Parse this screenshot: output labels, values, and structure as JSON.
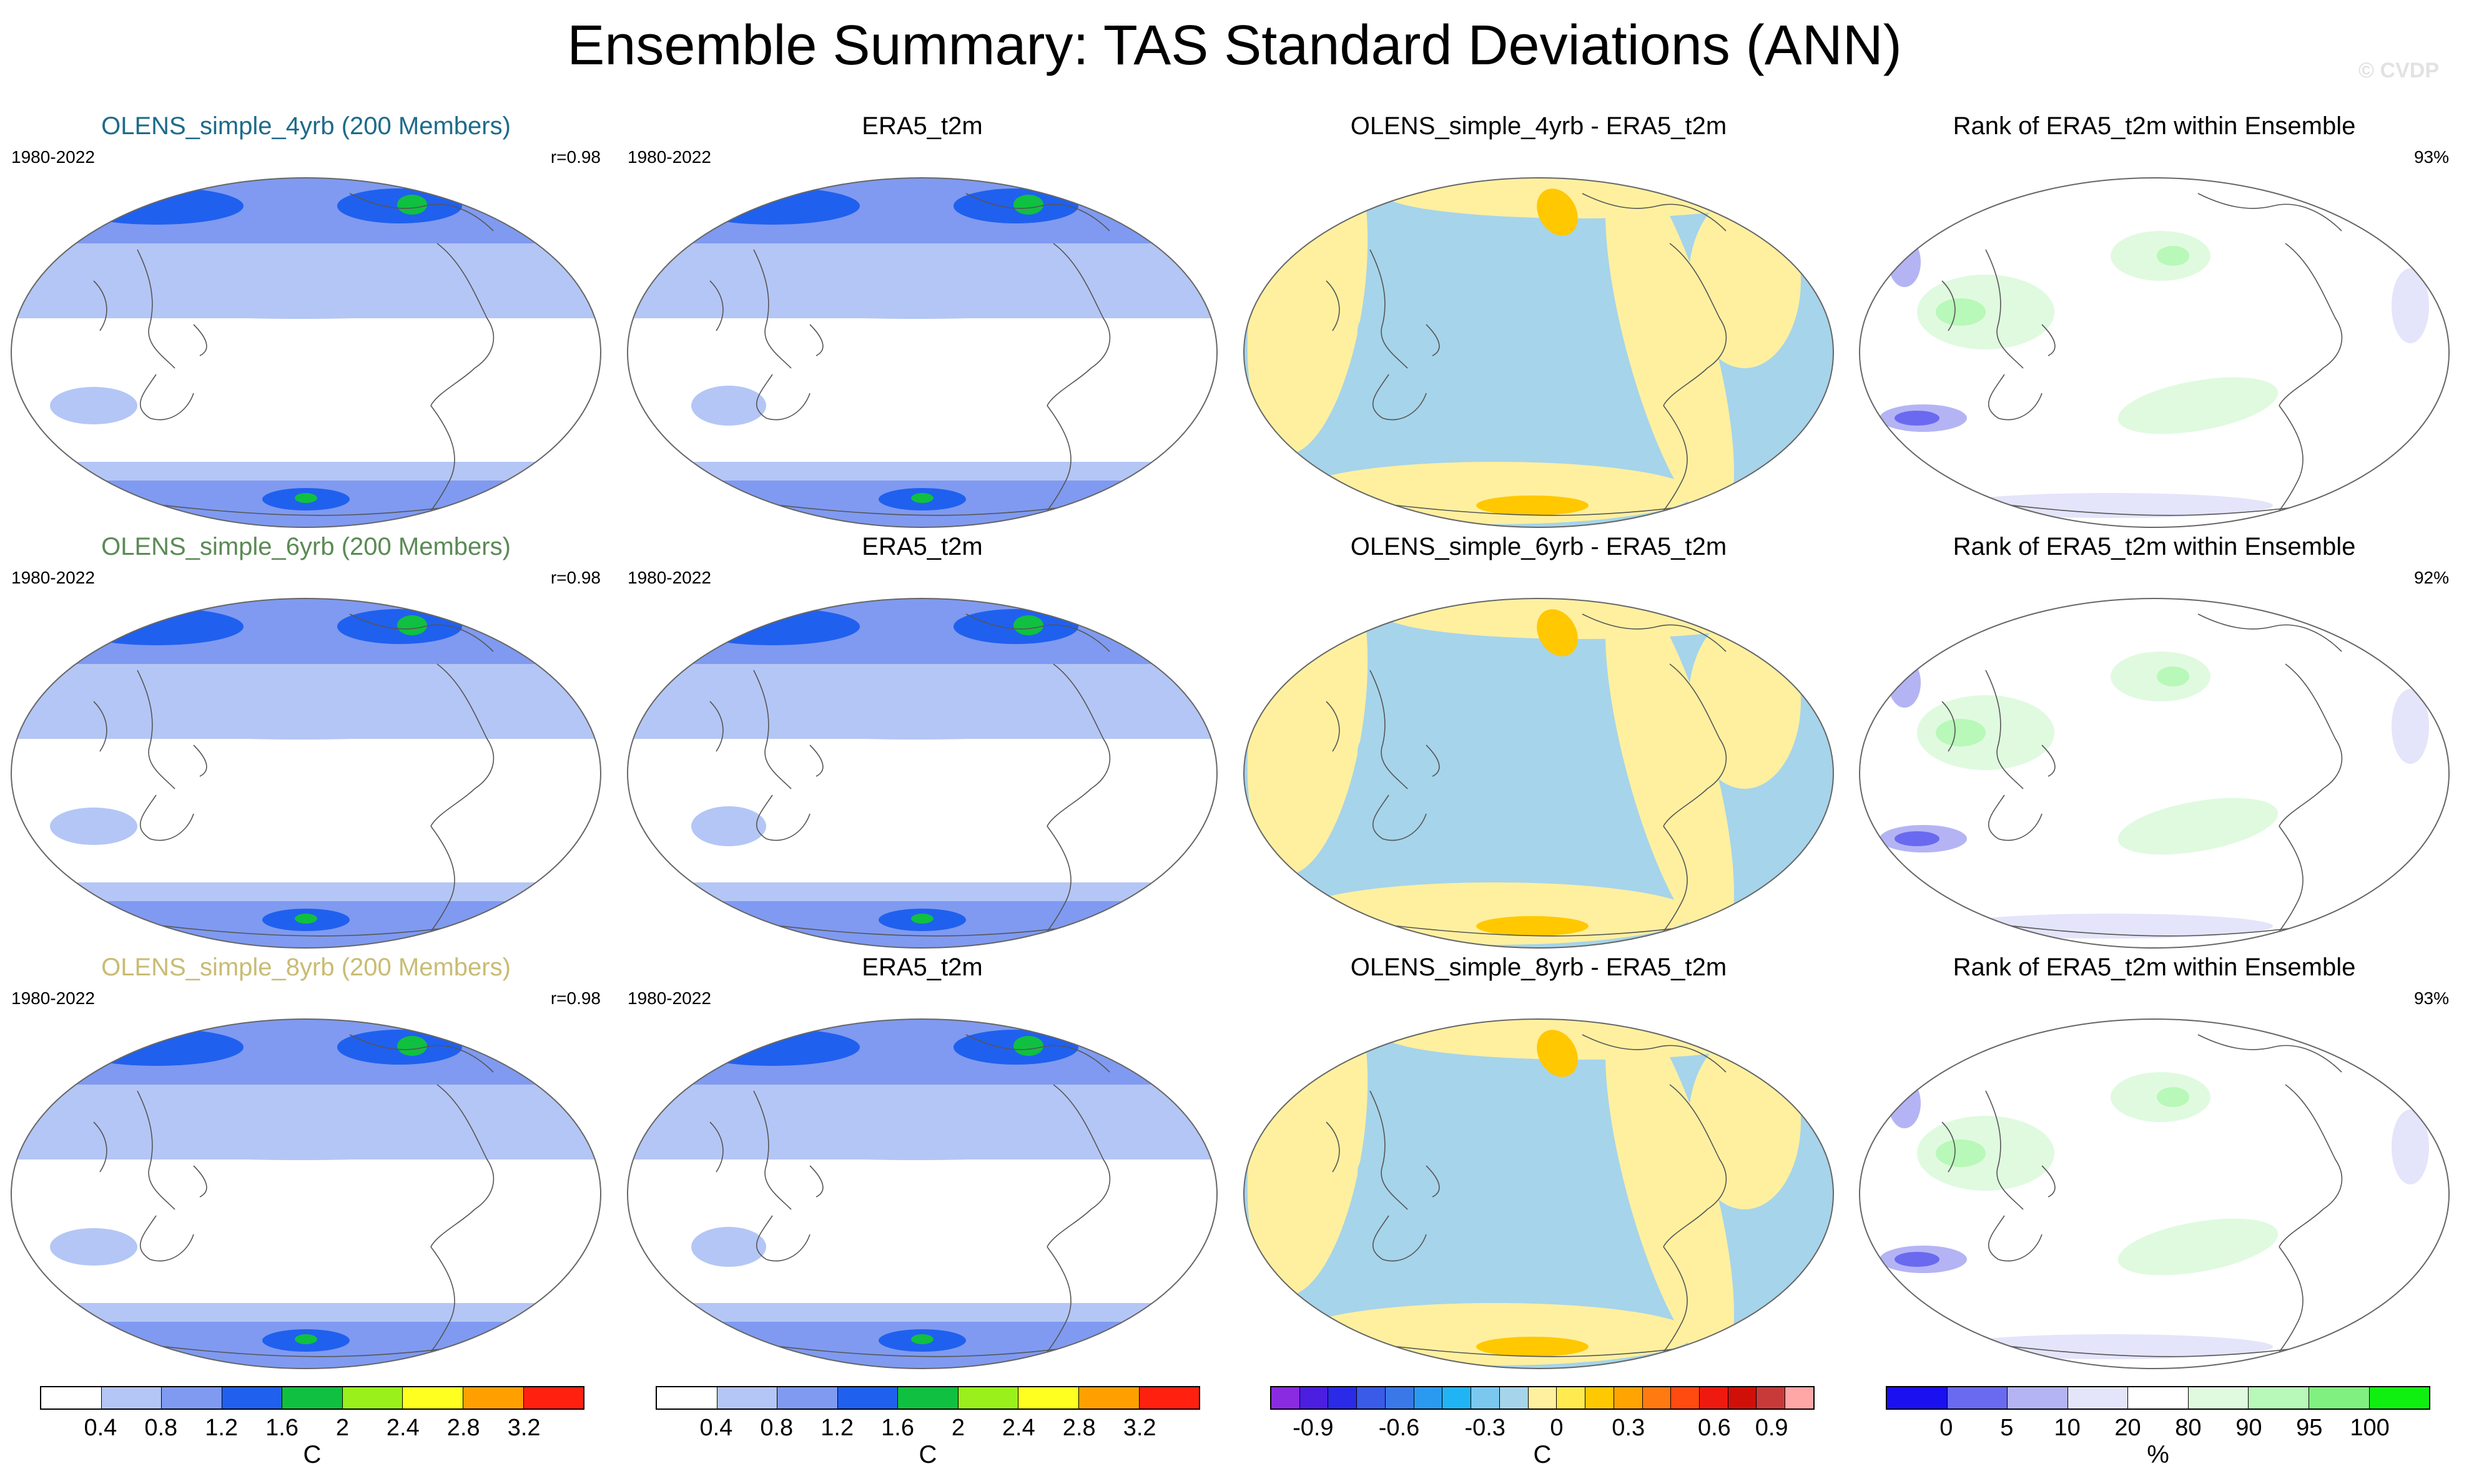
{
  "title": "Ensemble Summary: TAS Standard Deviations (ANN)",
  "watermark": "© CVDP",
  "rows": [
    {
      "ensemble": {
        "title": "OLENS_simple_4yrb (200 Members)",
        "title_color": "#1e6b8a",
        "period": "1980-2022",
        "stat": "r=0.98"
      },
      "obs": {
        "title": "ERA5_t2m",
        "period": "1980-2022"
      },
      "diff": {
        "title": "OLENS_simple_4yrb - ERA5_t2m"
      },
      "rank": {
        "title": "Rank of ERA5_t2m within Ensemble",
        "stat": "93%"
      }
    },
    {
      "ensemble": {
        "title": "OLENS_simple_6yrb (200 Members)",
        "title_color": "#5b8a55",
        "period": "1980-2022",
        "stat": "r=0.98"
      },
      "obs": {
        "title": "ERA5_t2m",
        "period": "1980-2022"
      },
      "diff": {
        "title": "OLENS_simple_6yrb - ERA5_t2m"
      },
      "rank": {
        "title": "Rank of ERA5_t2m within Ensemble",
        "stat": "92%"
      }
    },
    {
      "ensemble": {
        "title": "OLENS_simple_8yrb (200 Members)",
        "title_color": "#c9bc74",
        "period": "1980-2022",
        "stat": "r=0.98"
      },
      "obs": {
        "title": "ERA5_t2m",
        "period": "1980-2022"
      },
      "diff": {
        "title": "OLENS_simple_8yrb - ERA5_t2m"
      },
      "rank": {
        "title": "Rank of ERA5_t2m within Ensemble",
        "stat": "93%"
      }
    }
  ],
  "colorbars": [
    {
      "unit": "C",
      "colors": [
        "#ffffff",
        "#b4c6f5",
        "#7f9af0",
        "#2060ee",
        "#10c040",
        "#9af01a",
        "#ffff20",
        "#ffa000",
        "#ff2010"
      ],
      "ticks": [
        "0.4",
        "0.8",
        "1.2",
        "1.6",
        "2",
        "2.4",
        "2.8",
        "3.2"
      ]
    },
    {
      "unit": "C",
      "colors": [
        "#ffffff",
        "#b4c6f5",
        "#7f9af0",
        "#2060ee",
        "#10c040",
        "#9af01a",
        "#ffff20",
        "#ffa000",
        "#ff2010"
      ],
      "ticks": [
        "0.4",
        "0.8",
        "1.2",
        "1.6",
        "2",
        "2.4",
        "2.8",
        "3.2"
      ]
    },
    {
      "unit": "C",
      "colors": [
        "#8a2be2",
        "#4b1ee0",
        "#2a2ae8",
        "#3a5ae8",
        "#3a78e8",
        "#2a9af0",
        "#20b4f5",
        "#7ac8f0",
        "#a6d4ea",
        "#fff0a0",
        "#ffea50",
        "#ffc800",
        "#ffa400",
        "#ff7a10",
        "#ff4a10",
        "#ee1a10",
        "#d01008",
        "#c83a3a",
        "#ffa6a6"
      ],
      "ticks": [
        "-0.9",
        "-0.6",
        "-0.3",
        "0",
        "0.3",
        "0.6",
        "0.9"
      ],
      "tick_slots": [
        1.5,
        4.5,
        7.5,
        10,
        12.5,
        15.5,
        17.5
      ]
    },
    {
      "unit": "%",
      "colors": [
        "#1a10f0",
        "#6a6af0",
        "#b4b4f5",
        "#e4e4fa",
        "#ffffff",
        "#e0fae0",
        "#b8f8b8",
        "#80f080",
        "#10f010"
      ],
      "ticks": [
        "0",
        "5",
        "10",
        "20",
        "80",
        "90",
        "95",
        "100"
      ]
    }
  ]
}
